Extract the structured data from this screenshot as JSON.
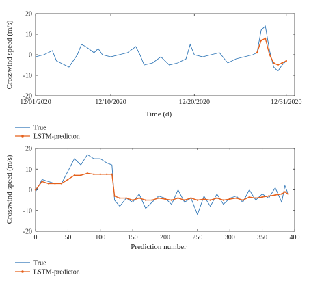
{
  "chart_data": [
    {
      "type": "line",
      "xlabel": "Time (d)",
      "ylabel": "Crosswind speed (m/s)",
      "ylim": [
        -20,
        20
      ],
      "yticks": [
        -20,
        -10,
        0,
        10,
        20
      ],
      "xlim": [
        0,
        31
      ],
      "xticks": [
        {
          "value": 0,
          "label": "12/01/2020"
        },
        {
          "value": 9,
          "label": "12/10/2020"
        },
        {
          "value": 19,
          "label": "12/20/2020"
        },
        {
          "value": 30,
          "label": "12/31/2020"
        }
      ],
      "grid": false,
      "series": [
        {
          "name": "True",
          "color": "#2e75b6",
          "x": [
            0,
            1,
            2,
            2.5,
            3,
            4,
            5,
            5.5,
            6,
            7,
            7.5,
            8,
            9,
            10,
            11,
            12,
            12.5,
            13,
            14,
            15,
            16,
            17,
            18,
            18.5,
            19,
            20,
            21,
            22,
            23,
            24,
            25,
            26,
            26.5,
            27,
            27.5,
            28,
            28.5,
            29,
            29.5,
            30
          ],
          "values": [
            -1,
            0,
            2,
            -3,
            -4,
            -6,
            0,
            5,
            4,
            1,
            3,
            0,
            -1,
            0,
            1,
            4,
            0,
            -5,
            -4,
            -1,
            -5,
            -4,
            -2,
            5,
            0,
            -1,
            0,
            1,
            -4,
            -2,
            -1,
            0,
            1,
            12,
            14,
            2,
            -6,
            -8,
            -5,
            -3
          ]
        },
        {
          "name": "LSTM-predicton",
          "color": "#e5601b",
          "x": [
            26.5,
            27,
            27.5,
            28,
            28.5,
            29,
            29.5,
            30
          ],
          "values": [
            1,
            7,
            8,
            0,
            -4,
            -5,
            -4,
            -3
          ]
        }
      ]
    },
    {
      "type": "line",
      "xlabel": "Prediction number",
      "ylabel": "Crosswind speed (m/s)",
      "xlim": [
        0,
        400
      ],
      "ylim": [
        -20,
        20
      ],
      "xticks": [
        0,
        50,
        100,
        150,
        200,
        250,
        300,
        350,
        400
      ],
      "yticks": [
        -20,
        -10,
        0,
        10,
        20
      ],
      "grid": false,
      "series": [
        {
          "name": "True",
          "color": "#2e75b6",
          "x": [
            0,
            10,
            20,
            30,
            40,
            50,
            60,
            70,
            80,
            90,
            100,
            110,
            118,
            122,
            130,
            140,
            150,
            160,
            170,
            180,
            190,
            200,
            210,
            220,
            230,
            240,
            250,
            260,
            270,
            280,
            290,
            300,
            310,
            320,
            330,
            340,
            350,
            360,
            370,
            380,
            385,
            390
          ],
          "values": [
            -1,
            5,
            4,
            3,
            3,
            9,
            15,
            12,
            17,
            15,
            15,
            13,
            12,
            -5,
            -8,
            -4,
            -6,
            -2,
            -9,
            -6,
            -3,
            -4,
            -7,
            0,
            -6,
            -4,
            -12,
            -3,
            -8,
            -2,
            -7,
            -4,
            -3,
            -6,
            0,
            -5,
            -2,
            -4,
            1,
            -6,
            2,
            -2
          ]
        },
        {
          "name": "LSTM-predicton",
          "color": "#e5601b",
          "x": [
            0,
            10,
            20,
            30,
            40,
            50,
            60,
            70,
            80,
            90,
            100,
            110,
            118,
            122,
            130,
            140,
            150,
            160,
            170,
            180,
            190,
            200,
            210,
            220,
            230,
            240,
            250,
            260,
            270,
            280,
            290,
            300,
            310,
            320,
            330,
            340,
            350,
            360,
            370,
            380,
            385,
            390
          ],
          "values": [
            0,
            4,
            3,
            3,
            3,
            5,
            7,
            7,
            8,
            7.5,
            7.5,
            7.5,
            7.5,
            -3,
            -4,
            -4,
            -5,
            -4,
            -5,
            -5,
            -4,
            -4.5,
            -5,
            -4,
            -5,
            -4,
            -5,
            -4.5,
            -5,
            -4,
            -5,
            -4.5,
            -4,
            -5,
            -3.5,
            -4,
            -3.5,
            -3,
            -2.5,
            -2,
            -1,
            -2
          ]
        }
      ]
    }
  ],
  "legends": [
    [
      {
        "label": "True",
        "color": "#2e75b6",
        "marker": false
      },
      {
        "label": "LSTM-predicton",
        "color": "#e5601b",
        "marker": true
      }
    ],
    [
      {
        "label": "True",
        "color": "#2e75b6",
        "marker": false
      },
      {
        "label": "LSTM-predicton",
        "color": "#e5601b",
        "marker": true
      }
    ]
  ]
}
